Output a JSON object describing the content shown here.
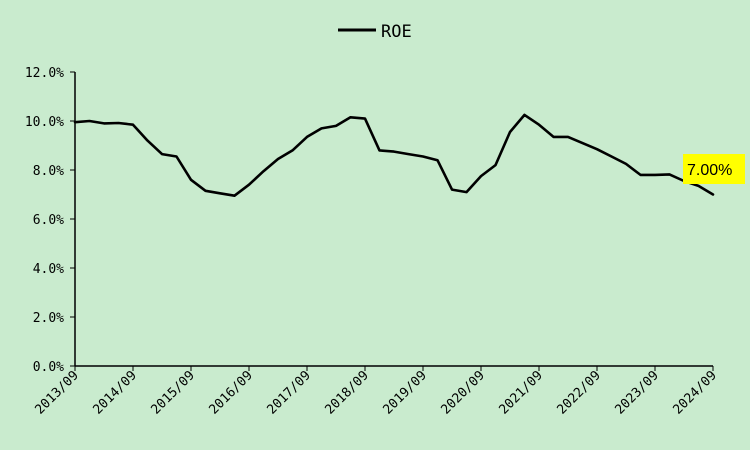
{
  "chart_data": {
    "type": "line",
    "title": "",
    "xlabel": "",
    "ylabel": "",
    "ylim": [
      0,
      12
    ],
    "y_ticks": [
      "0.0%",
      "2.0%",
      "4.0%",
      "6.0%",
      "8.0%",
      "10.0%",
      "12.0%"
    ],
    "x_ticks": [
      "2013/09",
      "2014/09",
      "2015/09",
      "2016/09",
      "2017/09",
      "2018/09",
      "2019/09",
      "2020/09",
      "2021/09",
      "2022/09",
      "2023/09",
      "2024/09"
    ],
    "grid": false,
    "legend_position": "top-center",
    "series": [
      {
        "name": "ROE",
        "color": "#000000",
        "x": [
          "2013/09",
          "2013/12",
          "2014/03",
          "2014/06",
          "2014/09",
          "2014/12",
          "2015/03",
          "2015/06",
          "2015/09",
          "2015/12",
          "2016/03",
          "2016/06",
          "2016/09",
          "2016/12",
          "2017/03",
          "2017/06",
          "2017/09",
          "2017/12",
          "2018/03",
          "2018/06",
          "2018/09",
          "2018/12",
          "2019/03",
          "2019/06",
          "2019/09",
          "2019/12",
          "2020/03",
          "2020/06",
          "2020/09",
          "2020/12",
          "2021/03",
          "2021/06",
          "2021/09",
          "2021/12",
          "2022/03",
          "2022/06",
          "2022/09",
          "2022/12",
          "2023/03",
          "2023/06",
          "2023/09",
          "2023/12",
          "2024/03",
          "2024/06",
          "2024/09"
        ],
        "values": [
          9.95,
          10.0,
          9.9,
          9.92,
          9.85,
          9.2,
          8.65,
          8.55,
          7.6,
          7.15,
          7.05,
          6.95,
          7.4,
          7.95,
          8.45,
          8.8,
          9.35,
          9.7,
          9.8,
          10.15,
          10.1,
          8.8,
          8.75,
          8.65,
          8.55,
          8.4,
          7.2,
          7.1,
          7.75,
          8.2,
          9.55,
          10.25,
          9.85,
          9.35,
          9.35,
          9.1,
          8.85,
          8.55,
          8.25,
          7.8,
          7.8,
          7.82,
          7.55,
          7.35,
          7.0
        ]
      }
    ],
    "annotation": {
      "text": "7.00%",
      "background": "#ffff00"
    }
  }
}
